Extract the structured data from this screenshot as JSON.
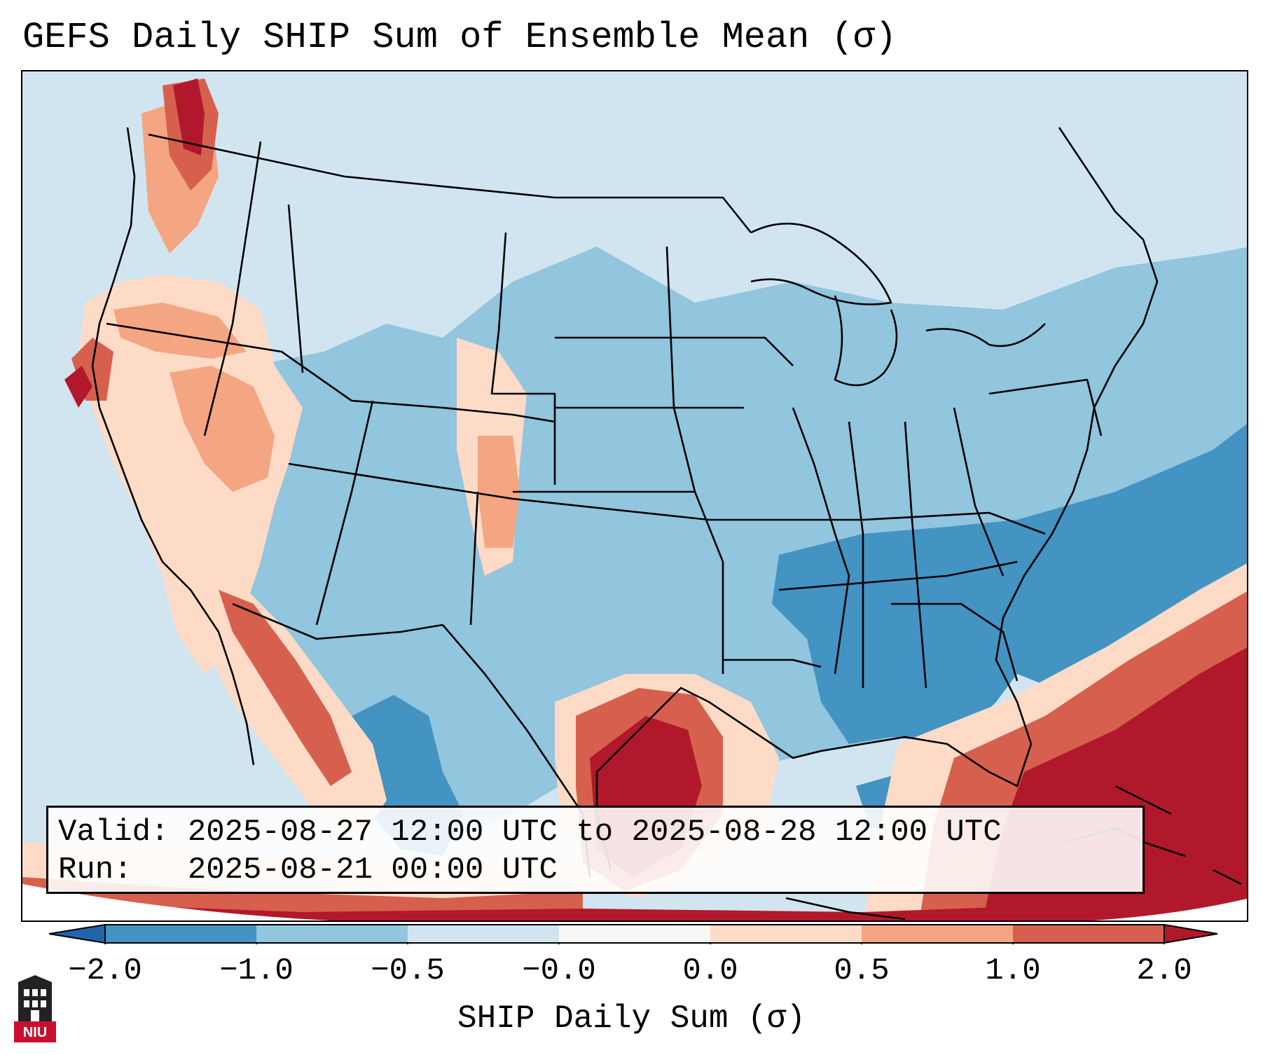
{
  "title": "GEFS Daily SHIP Sum of Ensemble Mean (σ)",
  "info": {
    "valid_label": "Valid:",
    "valid_value": "2025-08-27 12:00 UTC to 2025-08-28 12:00 UTC",
    "run_label": "Run:",
    "run_value": "2025-08-21 00:00 UTC"
  },
  "colorbar": {
    "label": "SHIP Daily Sum (σ)",
    "ticks": [
      "−2.0",
      "−1.0",
      "−0.5",
      "−0.0",
      "0.0",
      "0.5",
      "1.0",
      "2.0"
    ],
    "colors": [
      "#2166ac",
      "#4393c3",
      "#92c5de",
      "#d1e5f0",
      "#f7f7f7",
      "#fddbc7",
      "#f4a582",
      "#d6604d",
      "#b2182b"
    ],
    "extend": "both"
  },
  "legend_scale": {
    "neg2": "#4393c3",
    "neg1": "#92c5de",
    "neg05": "#d1e5f0",
    "pos0": "#fddbc7",
    "pos05": "#f4a582",
    "pos1": "#d6604d",
    "pos2": "#b2182b"
  },
  "logo": {
    "text": "NIU",
    "color": "#c8102e"
  }
}
